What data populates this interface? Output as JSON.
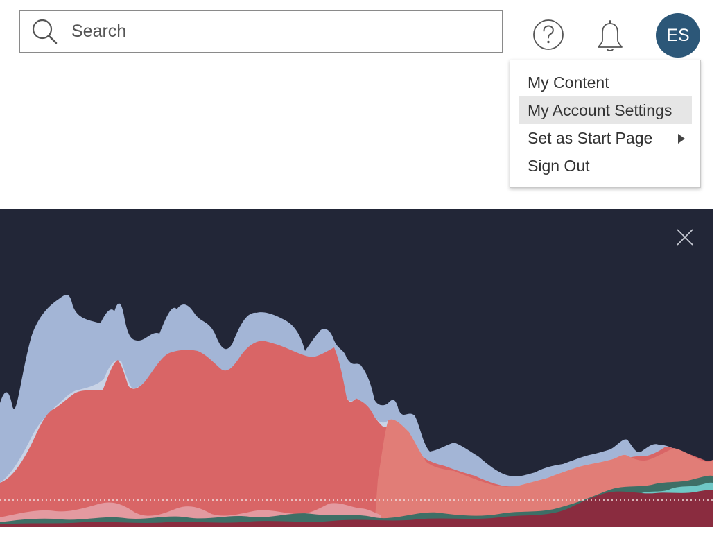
{
  "header": {
    "search": {
      "placeholder": "Search",
      "value": "",
      "icon": "search-icon"
    },
    "help_icon": "help-icon",
    "notifications_icon": "bell-icon",
    "avatar": {
      "initials": "ES",
      "color": "#2c5778"
    }
  },
  "user_menu": {
    "items": [
      {
        "label": "My Content"
      },
      {
        "label": "My Account Settings",
        "highlighted": true
      },
      {
        "label": "Set as Start Page",
        "has_submenu": true
      },
      {
        "label": "Sign Out"
      }
    ]
  },
  "banner": {
    "background": "#222637",
    "close_icon": "close-icon",
    "layer_colors": [
      "#a3b5d6",
      "#d96566",
      "#e17d77",
      "#8a2c3f",
      "#6fc8c6",
      "#3e6f66"
    ]
  }
}
